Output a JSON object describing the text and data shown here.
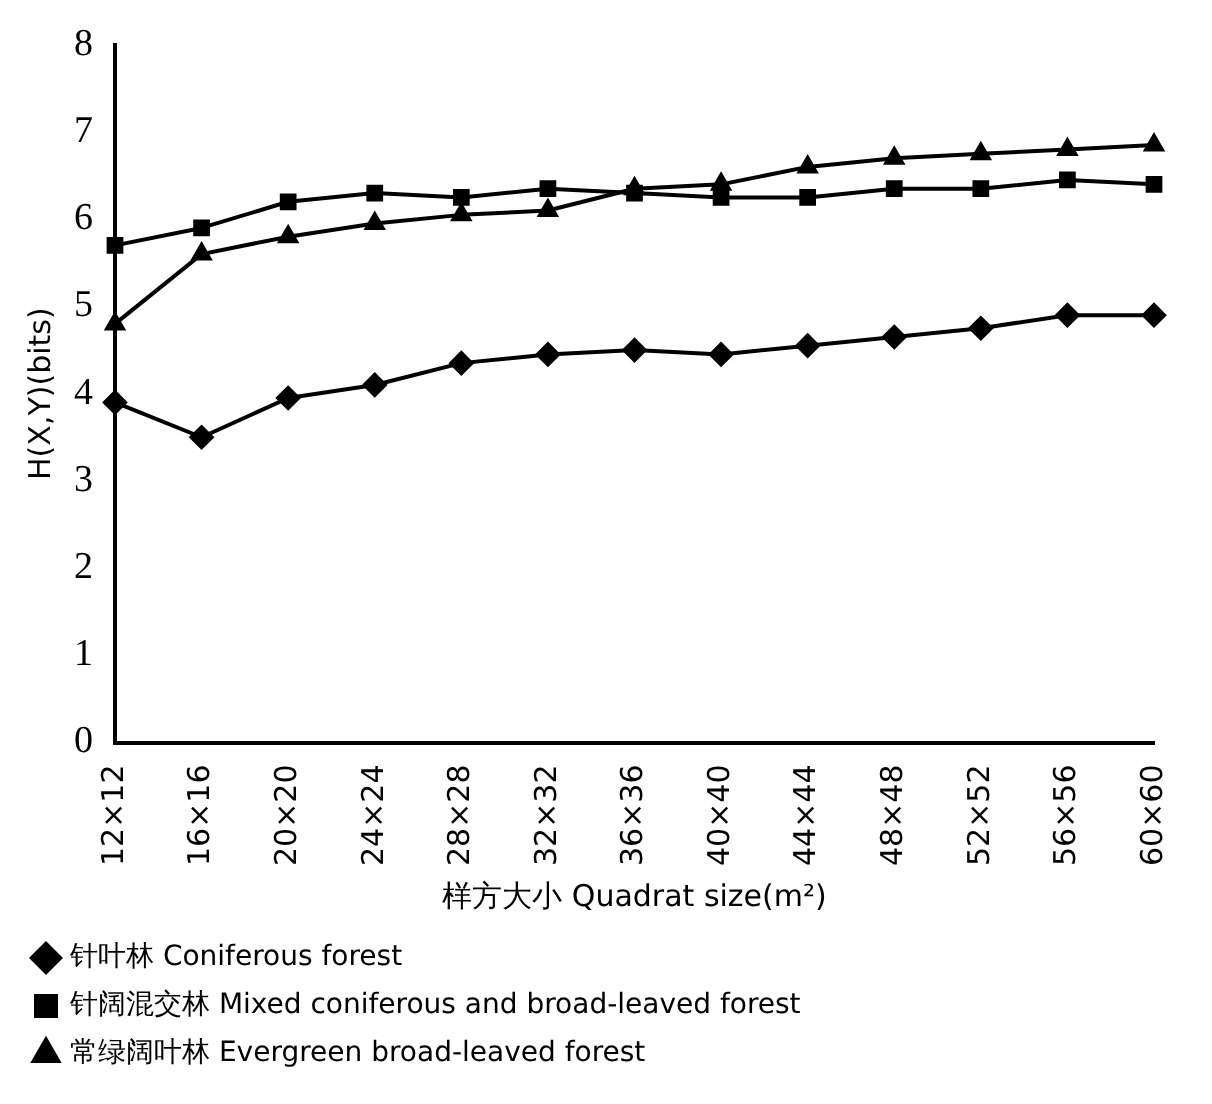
{
  "chart_data": {
    "type": "line",
    "xlabel": "样方大小 Quadrat size(m²)",
    "ylabel": "H(X,Y)(bits)",
    "categories": [
      "12×12",
      "16×16",
      "20×20",
      "24×24",
      "28×28",
      "32×32",
      "36×36",
      "40×40",
      "44×44",
      "48×48",
      "52×52",
      "56×56",
      "60×60"
    ],
    "series": [
      {
        "name": "针叶林 Coniferous forest",
        "color": "#000000",
        "marker": "diamond",
        "values": [
          3.9,
          3.5,
          3.95,
          4.1,
          4.35,
          4.45,
          4.5,
          4.45,
          4.55,
          4.65,
          4.75,
          4.9,
          4.9
        ]
      },
      {
        "name": "针阔混交林 Mixed coniferous and broad-leaved forest",
        "color": "#000000",
        "marker": "square",
        "values": [
          5.7,
          5.9,
          6.2,
          6.3,
          6.25,
          6.35,
          6.3,
          6.25,
          6.25,
          6.35,
          6.35,
          6.45,
          6.4
        ]
      },
      {
        "name": "常绿阔叶林 Evergreen broad-leaved forest",
        "color": "#000000",
        "marker": "triangle",
        "values": [
          4.8,
          5.6,
          5.8,
          5.95,
          6.05,
          6.1,
          6.35,
          6.4,
          6.6,
          6.7,
          6.75,
          6.8,
          6.85
        ]
      }
    ],
    "ylim": [
      0,
      8
    ],
    "yticks": [
      0,
      1,
      2,
      3,
      4,
      5,
      6,
      7,
      8
    ],
    "grid": false,
    "legend": "bottom",
    "line_style": "solid"
  }
}
